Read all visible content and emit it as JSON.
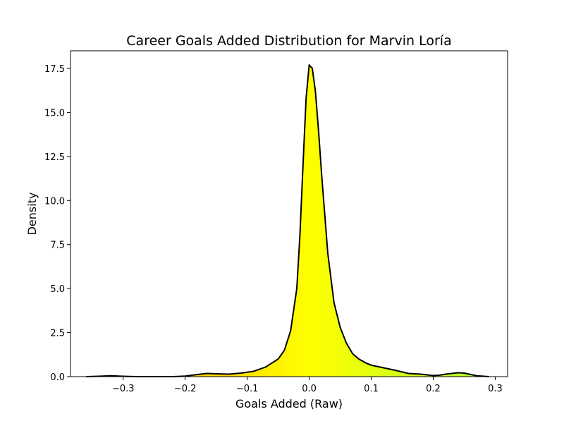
{
  "chart_data": {
    "type": "area",
    "title": "Career Goals Added Distribution for Marvin Loría",
    "xlabel": "Goals Added (Raw)",
    "ylabel": "Density",
    "xlim": [
      -0.385,
      0.32
    ],
    "ylim": [
      0,
      18.5
    ],
    "xticks": [
      -0.3,
      -0.2,
      -0.1,
      0.0,
      0.1,
      0.2,
      0.3
    ],
    "xtick_labels": [
      "−0.3",
      "−0.2",
      "−0.1",
      "0.0",
      "0.1",
      "0.2",
      "0.3"
    ],
    "yticks": [
      0.0,
      2.5,
      5.0,
      7.5,
      10.0,
      12.5,
      15.0,
      17.5
    ],
    "ytick_labels": [
      "0.0",
      "2.5",
      "5.0",
      "7.5",
      "10.0",
      "12.5",
      "15.0",
      "17.5"
    ],
    "grid": false,
    "legend": false,
    "line_color": "#000000",
    "fill_colormap": [
      "#ffa500",
      "#ffff00",
      "#adff2f"
    ],
    "x": [
      -0.36,
      -0.34,
      -0.32,
      -0.3,
      -0.28,
      -0.26,
      -0.24,
      -0.22,
      -0.2,
      -0.18,
      -0.165,
      -0.15,
      -0.13,
      -0.11,
      -0.09,
      -0.07,
      -0.05,
      -0.04,
      -0.03,
      -0.02,
      -0.015,
      -0.01,
      -0.005,
      0.0,
      0.005,
      0.01,
      0.015,
      0.02,
      0.03,
      0.04,
      0.05,
      0.06,
      0.07,
      0.08,
      0.09,
      0.1,
      0.12,
      0.14,
      0.16,
      0.18,
      0.2,
      0.21,
      0.22,
      0.24,
      0.25,
      0.27,
      0.29
    ],
    "y": [
      0.0,
      0.02,
      0.05,
      0.02,
      0.0,
      0.0,
      0.0,
      0.0,
      0.03,
      0.12,
      0.18,
      0.16,
      0.14,
      0.2,
      0.3,
      0.55,
      1.0,
      1.5,
      2.6,
      5.0,
      8.0,
      12.0,
      15.8,
      17.7,
      17.5,
      16.2,
      14.0,
      11.5,
      7.0,
      4.2,
      2.8,
      1.9,
      1.3,
      1.0,
      0.8,
      0.65,
      0.5,
      0.35,
      0.18,
      0.14,
      0.06,
      0.08,
      0.14,
      0.22,
      0.2,
      0.05,
      0.0
    ]
  }
}
